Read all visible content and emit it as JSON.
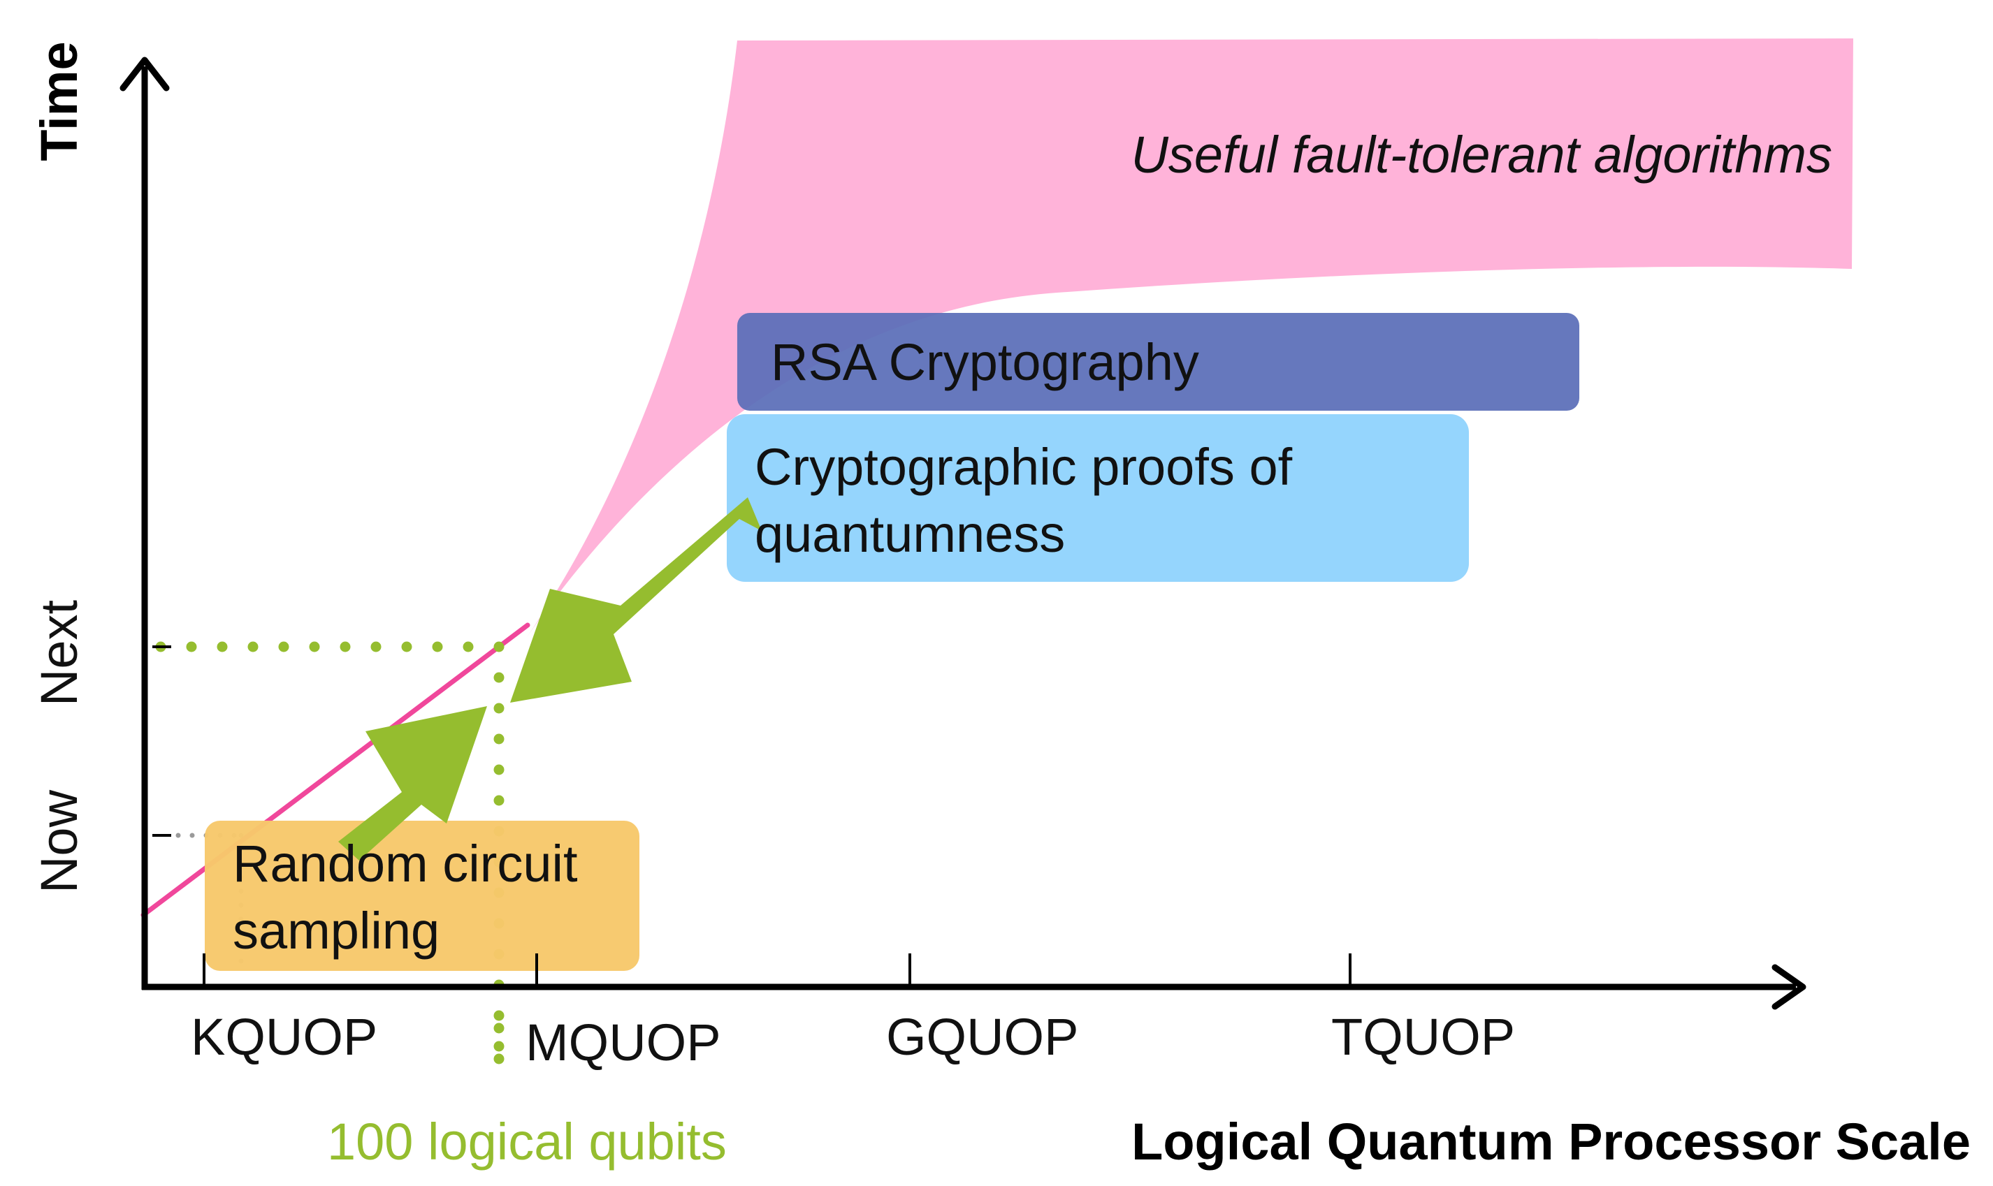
{
  "axes": {
    "y_title": "Time",
    "x_title": "Logical Quantum Processor Scale",
    "y_ticks": [
      "Now",
      "Next"
    ],
    "x_ticks": [
      "KQUOP",
      "MQUOP",
      "GQUOP",
      "TQUOP"
    ]
  },
  "regions": {
    "fault_tolerant": "Useful fault-tolerant algorithms",
    "rsa": "RSA Cryptography",
    "crypto_proofs": [
      "Cryptographic proofs of",
      "quantumness"
    ],
    "rcs": [
      "Random circuit",
      "sampling"
    ]
  },
  "marker": {
    "label": "100 logical qubits"
  },
  "colors": {
    "fault_tolerant_fill": "#ffb3d9",
    "rsa_fill": "#5a6eb8",
    "crypto_proofs_fill": "#8fd3fd",
    "rcs_fill": "#f7c86b",
    "trend_line": "#f0479b",
    "arrow": "#95bd2f",
    "marker": "#95bd2f",
    "axis": "#000000"
  }
}
